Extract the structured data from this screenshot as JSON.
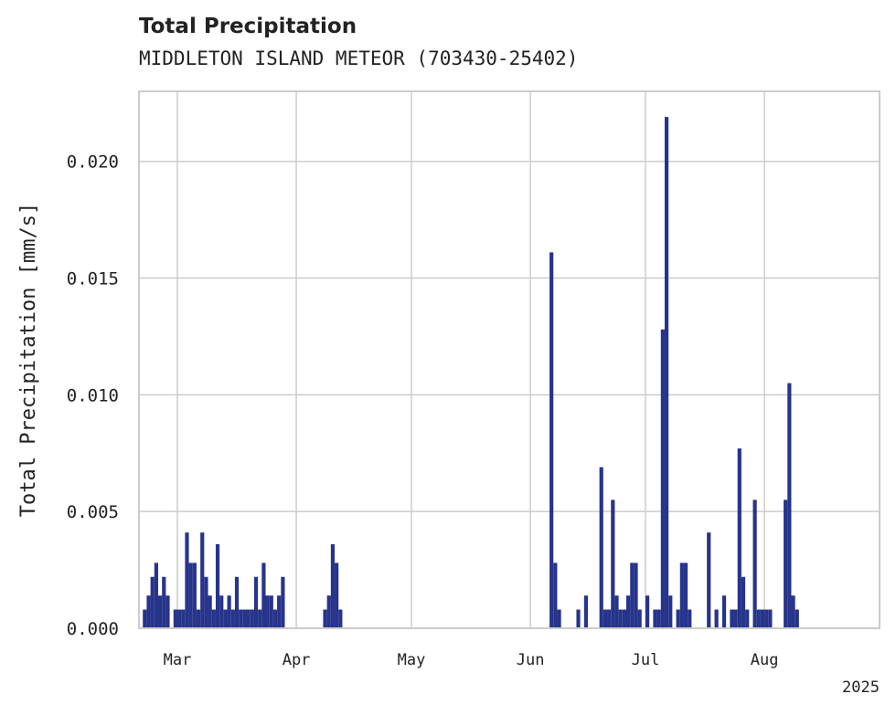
{
  "chart_data": {
    "type": "bar",
    "title": "Total Precipitation",
    "subtitle": "MIDDLETON ISLAND METEOR (703430-25402)",
    "ylabel": "Total Precipitation [mm/s]",
    "xlabel": "",
    "ylim": [
      0,
      0.023
    ],
    "xlim": [
      "2025-02-19",
      "2025-08-31"
    ],
    "year_label": "2025",
    "yticks": [
      "0.000",
      "0.005",
      "0.010",
      "0.015",
      "0.020"
    ],
    "ytick_values": [
      0,
      0.005,
      0.01,
      0.015,
      0.02
    ],
    "xticks": [
      {
        "date": "2025-03-01",
        "label": "Mar"
      },
      {
        "date": "2025-04-01",
        "label": "Apr"
      },
      {
        "date": "2025-05-01",
        "label": "May"
      },
      {
        "date": "2025-06-01",
        "label": "Jun"
      },
      {
        "date": "2025-07-01",
        "label": "Jul"
      },
      {
        "date": "2025-08-01",
        "label": "Aug"
      }
    ],
    "grid": true,
    "bar_color": "#27348b",
    "series": [
      {
        "x": [
          "2025-02-20",
          "2025-02-21",
          "2025-02-22",
          "2025-02-23",
          "2025-02-24",
          "2025-02-25",
          "2025-02-26",
          "2025-02-28",
          "2025-03-01",
          "2025-03-02",
          "2025-03-03",
          "2025-03-04",
          "2025-03-05",
          "2025-03-06",
          "2025-03-07",
          "2025-03-08",
          "2025-03-09",
          "2025-03-10",
          "2025-03-11",
          "2025-03-12",
          "2025-03-13",
          "2025-03-14",
          "2025-03-15",
          "2025-03-16",
          "2025-03-17",
          "2025-03-18",
          "2025-03-19",
          "2025-03-20",
          "2025-03-21",
          "2025-03-22",
          "2025-03-23",
          "2025-03-24",
          "2025-03-25",
          "2025-03-26",
          "2025-03-27",
          "2025-03-28",
          "2025-04-08",
          "2025-04-09",
          "2025-04-10",
          "2025-04-11",
          "2025-04-12",
          "2025-06-06",
          "2025-06-07",
          "2025-06-08",
          "2025-06-13",
          "2025-06-15",
          "2025-06-19",
          "2025-06-20",
          "2025-06-21",
          "2025-06-22",
          "2025-06-23",
          "2025-06-24",
          "2025-06-25",
          "2025-06-26",
          "2025-06-27",
          "2025-06-28",
          "2025-06-29",
          "2025-07-01",
          "2025-07-03",
          "2025-07-04",
          "2025-07-05",
          "2025-07-06",
          "2025-07-07",
          "2025-07-09",
          "2025-07-10",
          "2025-07-11",
          "2025-07-12",
          "2025-07-17",
          "2025-07-19",
          "2025-07-21",
          "2025-07-23",
          "2025-07-24",
          "2025-07-25",
          "2025-07-26",
          "2025-07-27",
          "2025-07-29",
          "2025-07-30",
          "2025-07-31",
          "2025-08-01",
          "2025-08-02",
          "2025-08-06",
          "2025-08-07",
          "2025-08-08",
          "2025-08-09"
        ],
        "values": [
          0.0008,
          0.0014,
          0.0022,
          0.0028,
          0.0014,
          0.0022,
          0.0014,
          0.0008,
          0.0008,
          0.0008,
          0.0041,
          0.0028,
          0.0028,
          0.0008,
          0.0041,
          0.0022,
          0.0014,
          0.0008,
          0.0036,
          0.0014,
          0.0008,
          0.0014,
          0.0008,
          0.0022,
          0.0008,
          0.0008,
          0.0008,
          0.0008,
          0.0022,
          0.0008,
          0.0028,
          0.0014,
          0.0014,
          0.0008,
          0.0014,
          0.0022,
          0.0008,
          0.0014,
          0.0036,
          0.0028,
          0.0008,
          0.0161,
          0.0028,
          0.0008,
          0.0008,
          0.0014,
          0.0069,
          0.0008,
          0.0008,
          0.0055,
          0.0014,
          0.0008,
          0.0008,
          0.0014,
          0.0028,
          0.0028,
          0.0008,
          0.0014,
          0.0008,
          0.0008,
          0.0128,
          0.0219,
          0.0014,
          0.0008,
          0.0028,
          0.0028,
          0.0008,
          0.0041,
          0.0008,
          0.0014,
          0.0008,
          0.0008,
          0.0077,
          0.0022,
          0.0008,
          0.0055,
          0.0008,
          0.0008,
          0.0008,
          0.0008,
          0.0055,
          0.0105,
          0.0014,
          0.0008
        ]
      }
    ]
  }
}
